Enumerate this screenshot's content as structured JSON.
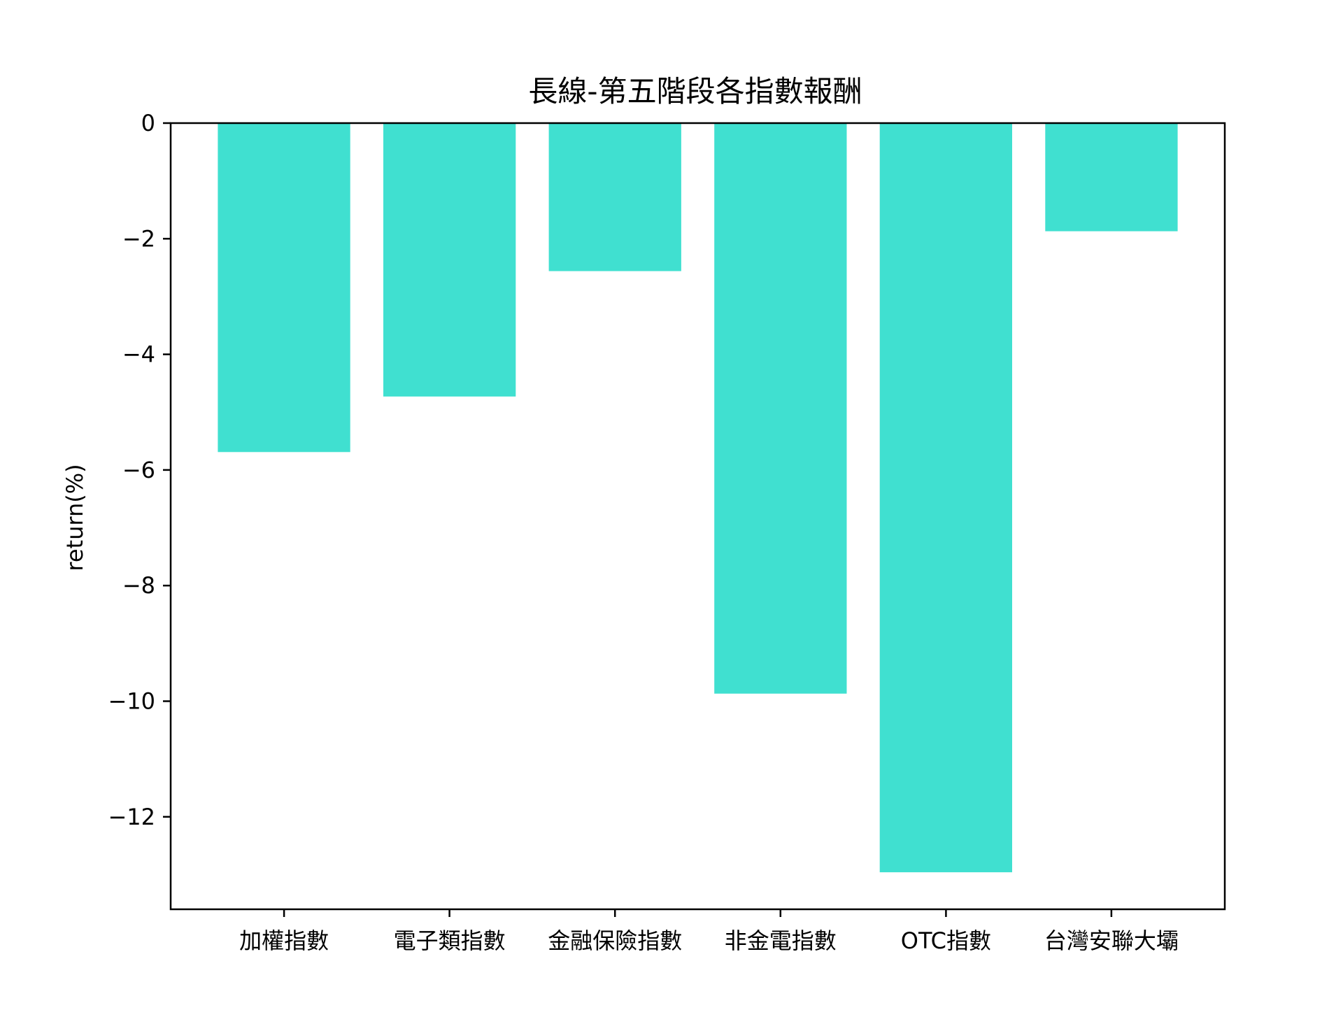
{
  "chart_data": {
    "type": "bar",
    "title": "長線-第五階段各指數報酬",
    "xlabel": "",
    "ylabel": "return(%)",
    "categories": [
      "加權指數",
      "電子類指數",
      "金融保險指數",
      "非金電指數",
      "OTC指數",
      "台灣安聯大壩"
    ],
    "values": [
      -5.69,
      -4.73,
      -2.56,
      -9.87,
      -12.96,
      -1.87
    ],
    "ylim": [
      -13.6,
      0
    ],
    "yticks": [
      0,
      -2,
      -4,
      -6,
      -8,
      -10,
      -12
    ],
    "ytick_labels": [
      "0",
      "−2",
      "−4",
      "−6",
      "−8",
      "−10",
      "−12"
    ],
    "bar_color": "#40e0d0",
    "grid": false,
    "legend": "none"
  }
}
